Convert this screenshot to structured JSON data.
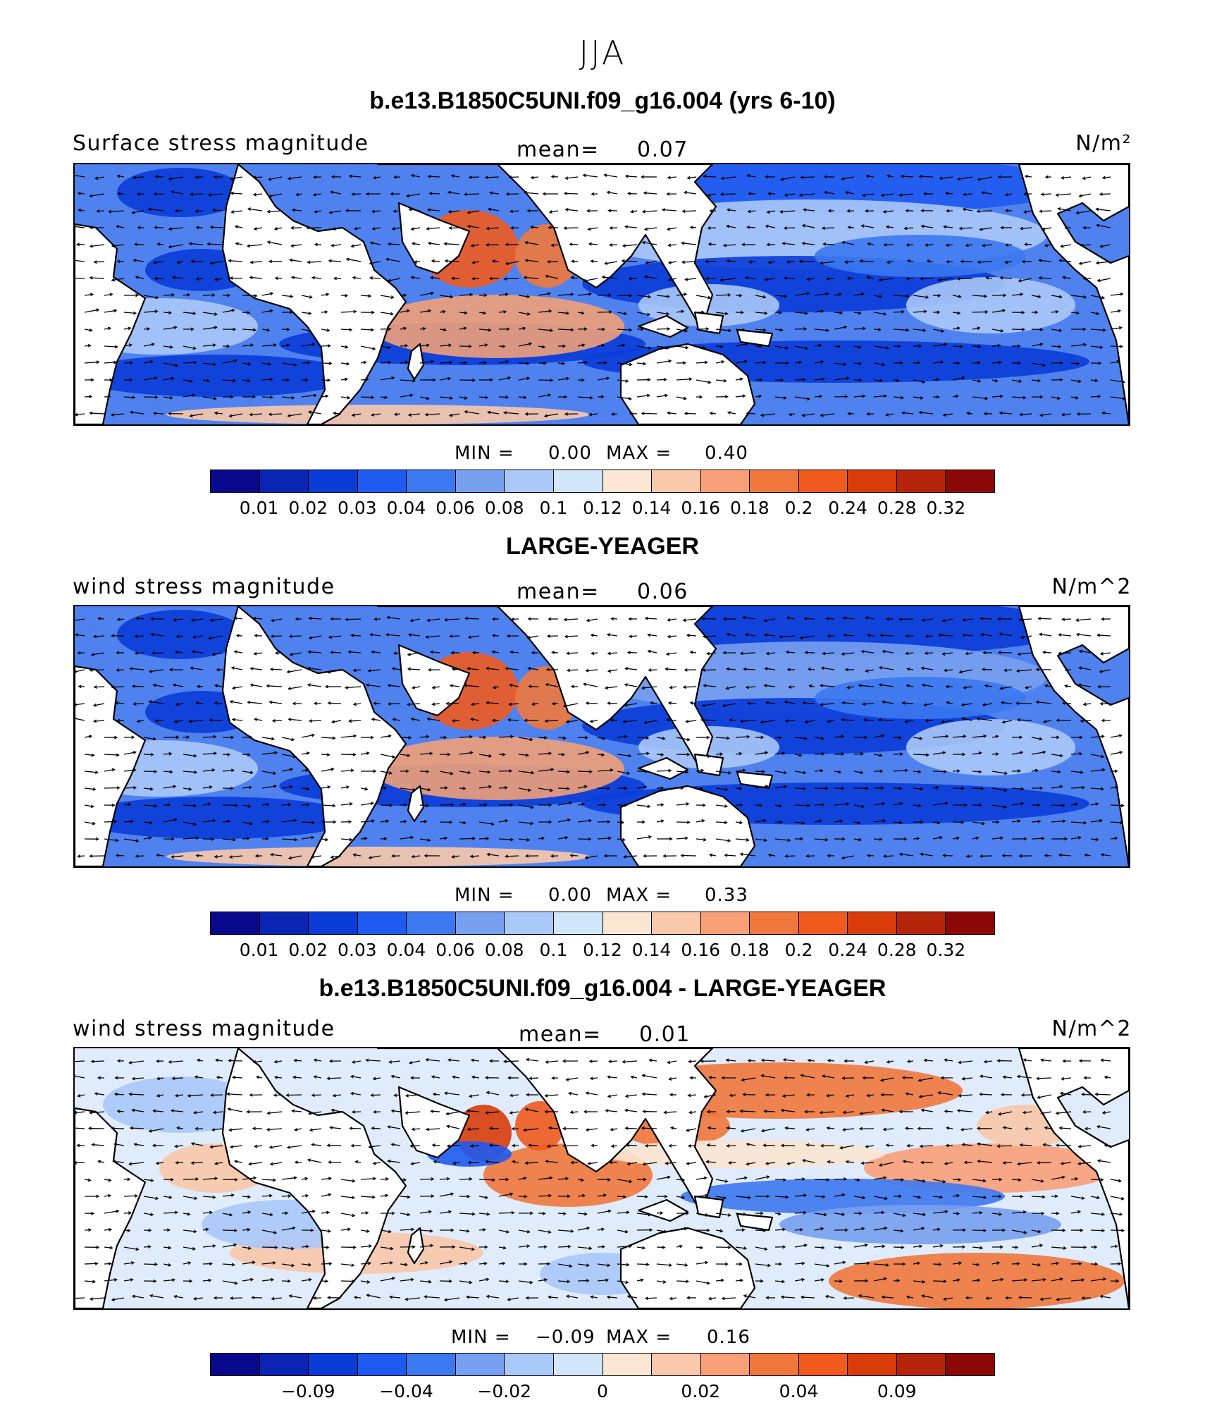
{
  "suptitle": "JJA",
  "colors": [
    "#08088c",
    "#0a24b4",
    "#0a3cd8",
    "#1e5af0",
    "#3c78f0",
    "#78a0f0",
    "#aac8f8",
    "#d2e6fa",
    "#fae6d2",
    "#fac8aa",
    "#faa078",
    "#f0783c",
    "#f05a1e",
    "#d83c0a",
    "#b4240a",
    "#8c0808"
  ],
  "panels": [
    {
      "title": "b.e13.B1850C5UNI.f09_g16.004 (yrs 6-10)",
      "left": "Surface stress magnitude",
      "mean_label": "mean=",
      "mean_value": "0.07",
      "units": "N/m²",
      "min_label": "MIN =",
      "min_value": "0.00",
      "max_label": "MAX =",
      "max_value": "0.40",
      "cbar_labels": [
        "0.01",
        "0.02",
        "0.03",
        "0.04",
        "0.06",
        "0.08",
        "0.1",
        "0.12",
        "0.14",
        "0.16",
        "0.18",
        "0.2",
        "0.24",
        "0.28",
        "0.32"
      ],
      "field": "abs"
    },
    {
      "title": "LARGE-YEAGER",
      "left": "wind stress magnitude",
      "mean_label": "mean=",
      "mean_value": "0.06",
      "units": "N/m^2",
      "min_label": "MIN =",
      "min_value": "0.00",
      "max_label": "MAX =",
      "max_value": "0.33",
      "cbar_labels": [
        "0.01",
        "0.02",
        "0.03",
        "0.04",
        "0.06",
        "0.08",
        "0.1",
        "0.12",
        "0.14",
        "0.16",
        "0.18",
        "0.2",
        "0.24",
        "0.28",
        "0.32"
      ],
      "field": "abs2"
    },
    {
      "title": "b.e13.B1850C5UNI.f09_g16.004 - LARGE-YEAGER",
      "left": "wind stress magnitude",
      "mean_label": "mean=",
      "mean_value": "0.01",
      "units": "N/m^2",
      "min_label": "MIN =",
      "min_value": "−0.09",
      "max_label": "MAX =",
      "max_value": "0.16",
      "cbar_labels": [
        "−0.09",
        "−0.04",
        "−0.02",
        "0",
        "0.02",
        "0.04",
        "0.09"
      ],
      "cbar_label_positions": [
        2,
        4,
        6,
        8,
        10,
        12,
        14
      ],
      "field": "diff"
    }
  ]
}
